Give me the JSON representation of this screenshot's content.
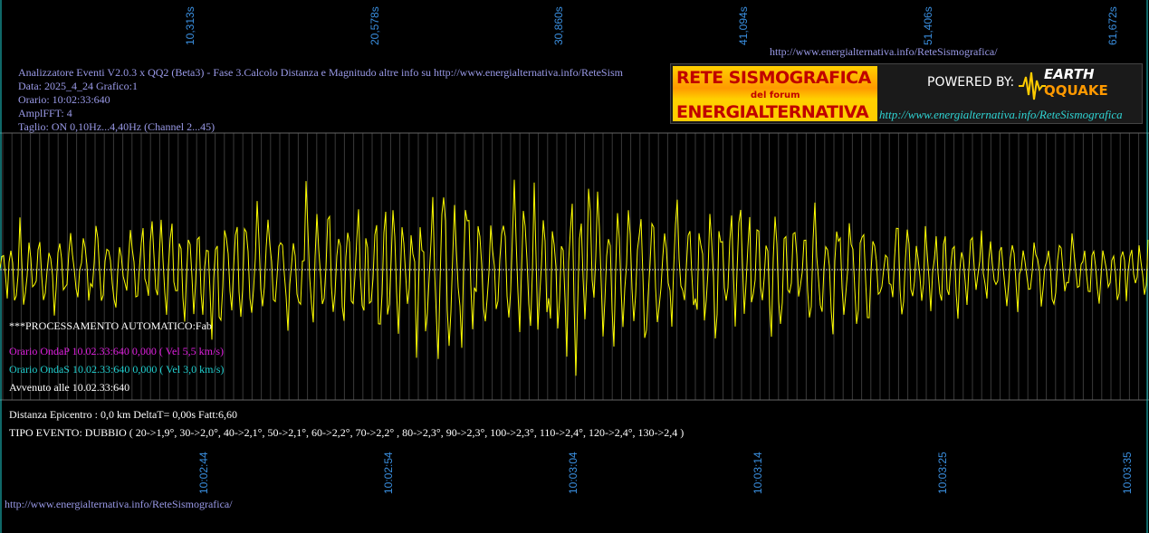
{
  "top_axis": {
    "ticks": [
      "10,313s",
      "20,578s",
      "30,860s",
      "41,094s",
      "51,406s",
      "61,672s"
    ]
  },
  "top_url": "http://www.energialternativa.info/ReteSismografica/",
  "info": {
    "line1": "Analizzatore Eventi V2.0.3 x QQ2 (Beta3) - Fase 3.Calcolo Distanza e Magnitudo altre info su http://www.energialternativa.info/ReteSism",
    "line2": "Data: 2025_4_24 Grafico:1",
    "line3": "Orario: 10:02:33:640",
    "line4": "AmplFFT: 4",
    "line5": "Taglio: ON 0,10Hz...4,40Hz       (Channel 2...45)"
  },
  "logo": {
    "title_top": "RETE SISMOGRAFICA",
    "subtitle": "del forum",
    "title_bottom": "ENERGIALTERNATIVA",
    "powered_by": "POWERED BY:",
    "brand_top": "EARTH",
    "brand_bottom": "QQUAKE",
    "url": "http://www.energialternativa.info/ReteSismografica"
  },
  "status": {
    "processing": "***PROCESSAMENTO AUTOMATICO:Fab",
    "onda_p": "Orario OndaP 10.02.33:640  0,000 ( Vel 5,5 km/s)",
    "onda_s": "Orario OndaS 10.02.33:640  0,000 ( Vel 3,0 km/s)",
    "avvenuto": "Avvenuto alle 10.02.33:640",
    "distanza": "Distanza Epicentro : 0,0 km DeltaT= 0,00s  Fatt:6,60",
    "tipo_evento": "TIPO EVENTO: DUBBIO ( 20->1,9°, 30->2,0°, 40->2,1°, 50->2,1°, 60->2,2°, 70->2,2° , 80->2,3°, 90->2,3°, 100->2,3°, 110->2,4°, 120->2,4°, 130->2,4 )"
  },
  "bottom_axis": {
    "ticks": [
      "10:02:44",
      "10:02:54",
      "10:03:04",
      "10:03:14",
      "10:03:25",
      "10:03:35"
    ]
  },
  "bottom_url": "http://www.energialternativa.info/ReteSismografica/",
  "colors": {
    "trace": "#ffff00",
    "grid": "#555555",
    "tick_label": "#3a8fe0",
    "onda_p": "#e020e0",
    "onda_s": "#20d0d0"
  }
}
